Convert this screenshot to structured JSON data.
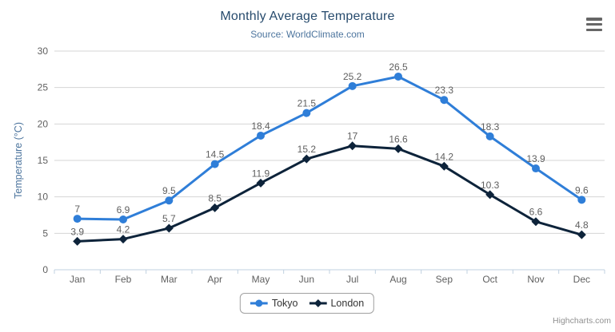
{
  "chart": {
    "title": "Monthly Average Temperature",
    "subtitle": "Source: WorldClimate.com",
    "y_axis_title": "Temperature (°C)",
    "credits": "Highcharts.com",
    "export_icon": "hamburger-icon"
  },
  "colors": {
    "background": "#ffffff",
    "title": "#274b6d",
    "subtitle": "#4d759e",
    "axis_title": "#4d759e",
    "axis_label": "#606060",
    "data_label": "#606060",
    "gridline": "#d4d4d4",
    "axis_line": "#c0d0e0",
    "legend_border": "#a0a0a0",
    "legend_text": "#333333",
    "credits": "#909090",
    "export_icon": "#666666",
    "tokyo": "#2f7ed8",
    "london": "#0d233a"
  },
  "chart_data": {
    "type": "line",
    "title": "Monthly Average Temperature",
    "subtitle": "Source: WorldClimate.com",
    "xlabel": "",
    "ylabel": "Temperature (°C)",
    "ylim": [
      0,
      30
    ],
    "ytick_step": 5,
    "grid": true,
    "data_labels": true,
    "legend_position": "bottom",
    "categories": [
      "Jan",
      "Feb",
      "Mar",
      "Apr",
      "May",
      "Jun",
      "Jul",
      "Aug",
      "Sep",
      "Oct",
      "Nov",
      "Dec"
    ],
    "series": [
      {
        "name": "Tokyo",
        "color": "#2f7ed8",
        "marker": "circle",
        "values": [
          7,
          6.9,
          9.5,
          14.5,
          18.4,
          21.5,
          25.2,
          26.5,
          23.3,
          18.3,
          13.9,
          9.6
        ]
      },
      {
        "name": "London",
        "color": "#0d233a",
        "marker": "diamond",
        "values": [
          3.9,
          4.2,
          5.7,
          8.5,
          11.9,
          15.2,
          17,
          16.6,
          14.2,
          10.3,
          6.6,
          4.8
        ]
      }
    ]
  }
}
